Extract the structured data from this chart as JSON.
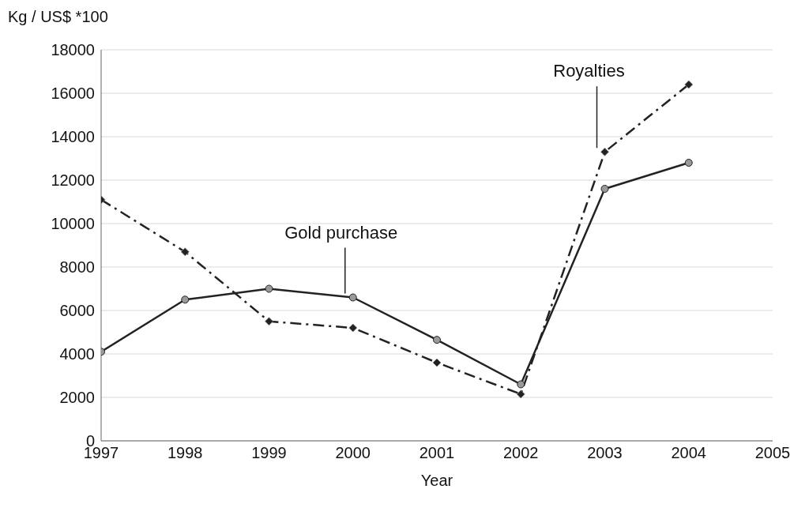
{
  "chart_data": {
    "type": "line",
    "xlabel": "Year",
    "ylabel": "Kg / US$ *100",
    "x": [
      1997,
      1998,
      1999,
      2000,
      2001,
      2002,
      2003,
      2004
    ],
    "xlim": [
      1997,
      2005
    ],
    "xticks": [
      1997,
      1998,
      1999,
      2000,
      2001,
      2002,
      2003,
      2004,
      2005
    ],
    "ylim": [
      0,
      18000
    ],
    "yticks": [
      0,
      2000,
      4000,
      6000,
      8000,
      10000,
      12000,
      14000,
      16000,
      18000
    ],
    "grid": "y",
    "legend": false,
    "series": [
      {
        "name": "Gold purchase",
        "color": "#222222",
        "marker": "circle",
        "line_style": "solid",
        "values": [
          4100,
          6500,
          7000,
          6600,
          4650,
          2600,
          11600,
          12800
        ]
      },
      {
        "name": "Royalties",
        "color": "#222222",
        "marker": "diamond",
        "line_style": "dashdot",
        "values": [
          11100,
          8700,
          5500,
          5200,
          3600,
          2150,
          13300,
          16400
        ]
      }
    ]
  }
}
